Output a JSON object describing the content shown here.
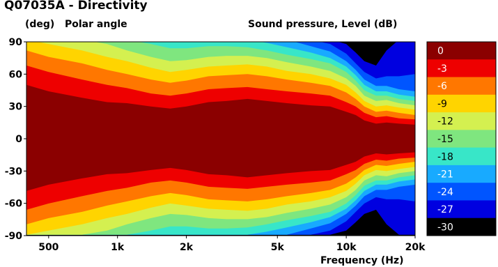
{
  "chart_data": {
    "type": "heatmap",
    "title": "Q07035A - Directivity",
    "ylabel_unit": "(deg)",
    "ylabel": "Polar angle",
    "colorbar_label": "Sound pressure, Level  (dB)",
    "xlabel": "Frequency  (Hz)",
    "x_scale": "log",
    "x_range": [
      400,
      20000
    ],
    "y_range": [
      -90,
      90
    ],
    "x_ticks": [
      {
        "value": 500,
        "label": "500"
      },
      {
        "value": 1000,
        "label": "1k"
      },
      {
        "value": 2000,
        "label": "2k"
      },
      {
        "value": 5000,
        "label": "5k"
      },
      {
        "value": 10000,
        "label": "10k"
      },
      {
        "value": 20000,
        "label": "20k"
      }
    ],
    "y_ticks": [
      90,
      60,
      30,
      0,
      -30,
      -60,
      -90
    ],
    "levels": [
      0,
      -3,
      -6,
      -9,
      -12,
      -15,
      -18,
      -21,
      -24,
      -27,
      -30
    ],
    "level_colors": [
      "#8b0000",
      "#ee0000",
      "#ff7700",
      "#ffd400",
      "#d4f050",
      "#7fe67f",
      "#38e6c8",
      "#18aaff",
      "#0055ff",
      "#0000e0",
      "#000000"
    ],
    "contour_angles_by_frequency": {
      "freq": [
        400,
        500,
        700,
        900,
        1100,
        1400,
        1700,
        2000,
        2500,
        3000,
        3700,
        4500,
        5500,
        7000,
        8500,
        10000,
        11000,
        12000,
        13500,
        15000,
        17000,
        20000
      ],
      "minus3dB": [
        50,
        44,
        38,
        34,
        33,
        30,
        28,
        30,
        34,
        35,
        37,
        35,
        33,
        31,
        30,
        25,
        22,
        17,
        14,
        15,
        14,
        13
      ],
      "minus6dB": [
        68,
        62,
        55,
        50,
        47,
        42,
        40,
        42,
        46,
        47,
        48,
        46,
        44,
        42,
        40,
        34,
        30,
        24,
        20,
        21,
        19,
        18
      ],
      "minus9dB": [
        82,
        76,
        70,
        64,
        60,
        55,
        52,
        54,
        58,
        59,
        60,
        58,
        55,
        52,
        49,
        43,
        37,
        30,
        25,
        26,
        24,
        22
      ],
      "minus12dB": [
        92,
        88,
        82,
        76,
        72,
        66,
        62,
        64,
        67,
        68,
        69,
        67,
        63,
        60,
        56,
        50,
        43,
        35,
        30,
        31,
        29,
        27
      ],
      "minus15dB": [
        92,
        92,
        92,
        88,
        82,
        76,
        72,
        73,
        76,
        77,
        77,
        75,
        71,
        67,
        63,
        56,
        49,
        40,
        35,
        36,
        33,
        31
      ],
      "minus18dB": [
        92,
        92,
        92,
        92,
        92,
        88,
        84,
        84,
        86,
        86,
        85,
        82,
        78,
        74,
        70,
        62,
        54,
        45,
        40,
        40,
        37,
        35
      ],
      "minus21dB": [
        92,
        92,
        92,
        92,
        92,
        92,
        92,
        92,
        92,
        92,
        92,
        89,
        85,
        80,
        75,
        67,
        59,
        50,
        44,
        44,
        41,
        39
      ],
      "minus24dB": [
        92,
        92,
        92,
        92,
        92,
        92,
        92,
        92,
        92,
        92,
        92,
        92,
        92,
        86,
        81,
        72,
        64,
        55,
        49,
        49,
        46,
        44
      ],
      "minus27dB": [
        92,
        92,
        92,
        92,
        92,
        92,
        92,
        92,
        92,
        92,
        92,
        92,
        92,
        92,
        88,
        79,
        70,
        62,
        56,
        58,
        58,
        60
      ],
      "minus30dB": [
        92,
        92,
        92,
        92,
        92,
        92,
        92,
        92,
        92,
        92,
        92,
        92,
        92,
        92,
        92,
        88,
        80,
        72,
        68,
        82,
        92,
        92
      ]
    }
  }
}
